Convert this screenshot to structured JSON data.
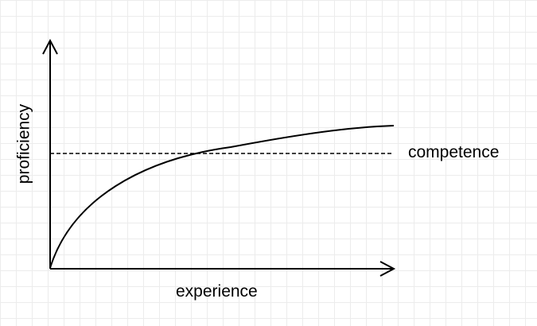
{
  "diagram": {
    "x_axis_label": "experience",
    "y_axis_label": "proficiency",
    "threshold_label": "competence",
    "colors": {
      "ink": "#000000",
      "grid": "#ececec",
      "background": "#ffffff"
    }
  }
}
